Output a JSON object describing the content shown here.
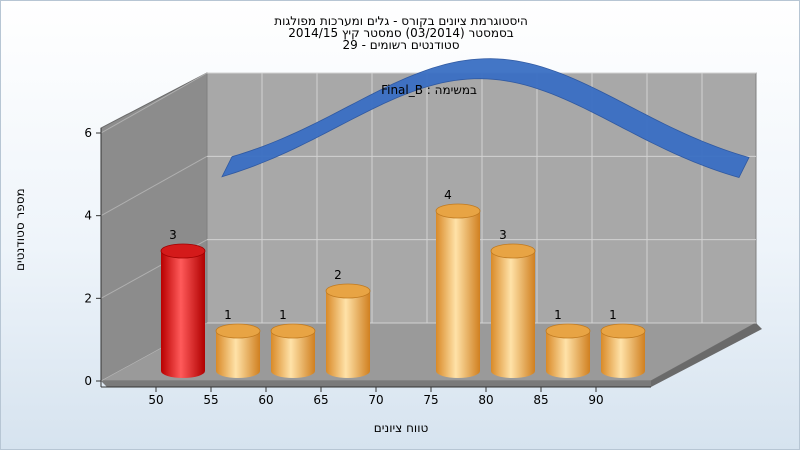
{
  "title": {
    "line1": "היסטוגרמת ציונים בקורס - גלים ומערכות מפולגות",
    "line2": "בסמסטר   (03/2014)  סמסטר קיץ 2014/15",
    "line3": "סטודנטים רשומים - 29"
  },
  "colors": {
    "highlight": "#e01010",
    "bar": "#f0b040",
    "curve": "#3a6fc4",
    "wall": "#a8a8a8"
  },
  "chart_data": {
    "type": "bar",
    "annotation": "Final_B : במשימה",
    "xlabel": "טווח ציונים",
    "ylabel": "מספר סטודנטים",
    "x_ticks": [
      "50",
      "55",
      "60",
      "65",
      "70",
      "75",
      "80",
      "85",
      "90"
    ],
    "y_ticks": [
      "0",
      "2",
      "4",
      "6"
    ],
    "ylim": [
      0,
      6
    ],
    "series": [
      {
        "values": [
          {
            "bin": "50-55",
            "value": 3,
            "highlight": true
          },
          {
            "bin": "55-60",
            "value": 1
          },
          {
            "bin": "60-65",
            "value": 1
          },
          {
            "bin": "65-70",
            "value": 2
          },
          {
            "bin": "70-75",
            "value": 0
          },
          {
            "bin": "75-80",
            "value": 4
          },
          {
            "bin": "80-85",
            "value": 3
          },
          {
            "bin": "85-90",
            "value": 1
          },
          {
            "bin": "90-95",
            "value": 1
          }
        ]
      }
    ],
    "curve": {
      "type": "normal-distribution"
    }
  }
}
